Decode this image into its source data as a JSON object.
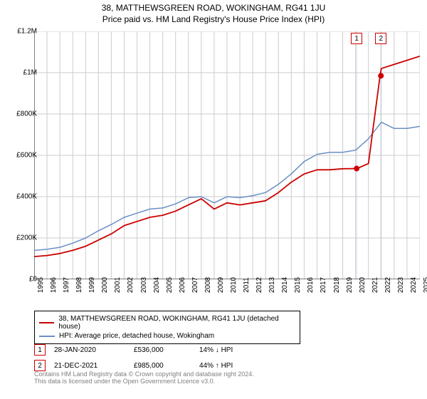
{
  "title_line1": "38, MATTHEWSGREEN ROAD, WOKINGHAM, RG41 1JU",
  "title_line2": "Price paid vs. HM Land Registry's House Price Index (HPI)",
  "chart": {
    "type": "line",
    "background_color": "#ffffff",
    "grid_color": "#cccccc",
    "axis_color": "#000000",
    "ylim": [
      0,
      1200000
    ],
    "ytick_step": 200000,
    "ytick_labels": [
      "£0",
      "£200K",
      "£400K",
      "£600K",
      "£800K",
      "£1M",
      "£1.2M"
    ],
    "xlim": [
      1995,
      2025
    ],
    "xticks": [
      1995,
      1996,
      1997,
      1998,
      1999,
      2000,
      2001,
      2002,
      2003,
      2004,
      2005,
      2006,
      2007,
      2008,
      2009,
      2010,
      2011,
      2012,
      2013,
      2014,
      2015,
      2016,
      2017,
      2018,
      2019,
      2020,
      2021,
      2022,
      2023,
      2024,
      2025
    ],
    "series": [
      {
        "id": "price_paid",
        "label": "38, MATTHEWSGREEN ROAD, WOKINGHAM, RG41 1JU (detached house)",
        "color": "#cc0000",
        "line_width": 1.8,
        "x": [
          1995,
          1996,
          1997,
          1998,
          1999,
          2000,
          2001,
          2002,
          2003,
          2004,
          2005,
          2006,
          2007,
          2008,
          2009,
          2010,
          2011,
          2012,
          2013,
          2014,
          2015,
          2016,
          2017,
          2018,
          2019,
          2020,
          2020.1,
          2021,
          2021.9,
          2022,
          2023,
          2024,
          2025
        ],
        "y": [
          110000,
          115000,
          125000,
          140000,
          160000,
          190000,
          220000,
          260000,
          280000,
          300000,
          310000,
          330000,
          360000,
          390000,
          340000,
          370000,
          360000,
          370000,
          380000,
          420000,
          470000,
          510000,
          530000,
          530000,
          535000,
          536000,
          536000,
          560000,
          985000,
          1020000,
          1040000,
          1060000,
          1080000
        ]
      },
      {
        "id": "hpi",
        "label": "HPI: Average price, detached house, Wokingham",
        "color": "#6a8fc5",
        "line_width": 1.5,
        "x": [
          1995,
          1996,
          1997,
          1998,
          1999,
          2000,
          2001,
          2002,
          2003,
          2004,
          2005,
          2006,
          2007,
          2008,
          2009,
          2010,
          2011,
          2012,
          2013,
          2014,
          2015,
          2016,
          2017,
          2018,
          2019,
          2020,
          2021,
          2022,
          2023,
          2024,
          2025
        ],
        "y": [
          140000,
          145000,
          155000,
          175000,
          200000,
          235000,
          265000,
          300000,
          320000,
          340000,
          345000,
          365000,
          395000,
          400000,
          370000,
          400000,
          395000,
          405000,
          420000,
          460000,
          510000,
          570000,
          605000,
          615000,
          615000,
          625000,
          680000,
          760000,
          730000,
          730000,
          740000
        ]
      }
    ],
    "highlight_bands": [
      {
        "x_from": 2020.0,
        "x_to": 2020.12,
        "color": "rgba(180,200,230,0.4)"
      },
      {
        "x_from": 2021.9,
        "x_to": 2022.02,
        "color": "rgba(180,200,230,0.4)"
      }
    ],
    "markers": [
      {
        "x": 2020.08,
        "y": 536000,
        "color": "#cc0000"
      },
      {
        "x": 2021.97,
        "y": 985000,
        "color": "#cc0000"
      }
    ],
    "chart_annotations": [
      {
        "label": "1",
        "x": 2020.08,
        "border_color": "#cc0000"
      },
      {
        "label": "2",
        "x": 2021.97,
        "border_color": "#cc0000"
      }
    ]
  },
  "legend": {
    "items": [
      {
        "color": "#cc0000",
        "label": "38, MATTHEWSGREEN ROAD, WOKINGHAM, RG41 1JU (detached house)"
      },
      {
        "color": "#6a8fc5",
        "label": "HPI: Average price, detached house, Wokingham"
      }
    ]
  },
  "annotations": [
    {
      "num": "1",
      "date": "28-JAN-2020",
      "price": "£536,000",
      "delta": "14% ↓ HPI"
    },
    {
      "num": "2",
      "date": "21-DEC-2021",
      "price": "£985,000",
      "delta": "44% ↑ HPI"
    }
  ],
  "footer_line1": "Contains HM Land Registry data © Crown copyright and database right 2024.",
  "footer_line2": "This data is licensed under the Open Government Licence v3.0."
}
